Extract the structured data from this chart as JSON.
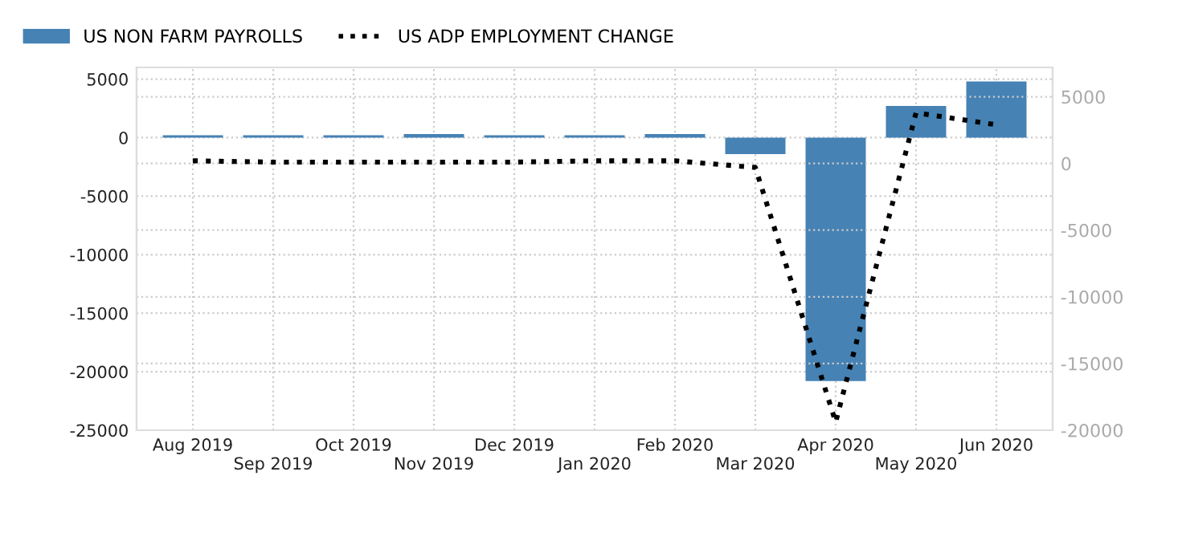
{
  "chart_data": {
    "type": "bar",
    "categories": [
      "Aug 2019",
      "Sep 2019",
      "Oct 2019",
      "Nov 2019",
      "Dec 2019",
      "Jan 2020",
      "Feb 2020",
      "Mar 2020",
      "Apr 2020",
      "May 2020",
      "Jun 2020"
    ],
    "series": [
      {
        "name": "US NON FARM PAYROLLS",
        "color": "#4682b4",
        "values": [
          200,
          200,
          200,
          300,
          200,
          200,
          300,
          -1400,
          -20800,
          2700,
          4800
        ]
      },
      {
        "name": "US ADP EMPLOYMENT CHANGE",
        "type": "line",
        "axis": "y2",
        "color": "#000000",
        "line_style": "dotted",
        "values": [
          200,
          100,
          100,
          100,
          100,
          200,
          200,
          -300,
          -19400,
          3800,
          2900
        ]
      }
    ],
    "ylim": [
      -25000,
      6000
    ],
    "yticks": [
      -25000,
      -20000,
      -15000,
      -10000,
      -5000,
      0,
      5000
    ],
    "y2lim": [
      -20000,
      7200
    ],
    "y2ticks": [
      -20000,
      -15000,
      -10000,
      -5000,
      0,
      5000
    ],
    "grid": true,
    "legend": "top left"
  }
}
